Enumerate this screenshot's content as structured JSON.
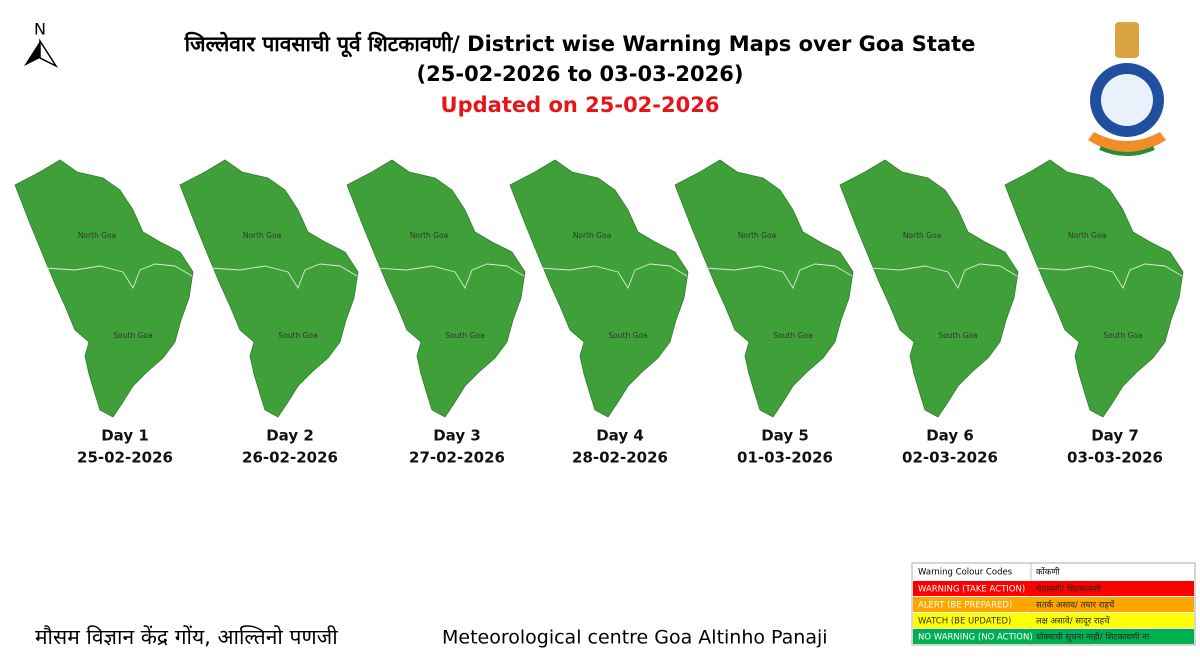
{
  "header": {
    "title": "जिल्लेवार पावसाची पूर्व शिटकावणी/ District wise Warning Maps over Goa State",
    "date_range": "(25-02-2026 to 03-03-2026)",
    "updated": "Updated on 25-02-2026"
  },
  "north_label": "N",
  "districts": [
    "North Goa",
    "South Goa"
  ],
  "days": [
    {
      "day": "Day 1",
      "date": "25-02-2026"
    },
    {
      "day": "Day 2",
      "date": "26-02-2026"
    },
    {
      "day": "Day 3",
      "date": "27-02-2026"
    },
    {
      "day": "Day 4",
      "date": "28-02-2026"
    },
    {
      "day": "Day 5",
      "date": "01-03-2026"
    },
    {
      "day": "Day 6",
      "date": "02-03-2026"
    },
    {
      "day": "Day 7",
      "date": "03-03-2026"
    }
  ],
  "legend": {
    "header": [
      "Warning Colour Codes",
      "कोंकणी"
    ],
    "rows": [
      {
        "english": "WARNING (TAKE ACTION)",
        "konkani": "चेतावणी/ शिटकावणी",
        "color": "#ff0000"
      },
      {
        "english": "ALERT (BE PREPARED)",
        "konkani": "सतर्क असाव/ तयार राहचें",
        "color": "#ffa500"
      },
      {
        "english": "WATCH (BE UPDATED)",
        "konkani": "लक्ष असावे/ सादूर राहचें",
        "color": "#ffff00"
      },
      {
        "english": "NO WARNING (NO ACTION)",
        "konkani": "धोक्याची सूचना नाही/ शिटकावणी ना",
        "color": "#00b050"
      }
    ]
  },
  "footer": {
    "marathi": "मौसम विज्ञान केंद्र गोंय, आल्तिनो पणजी",
    "english": "Meteorological centre Goa Altinho Panaji"
  }
}
